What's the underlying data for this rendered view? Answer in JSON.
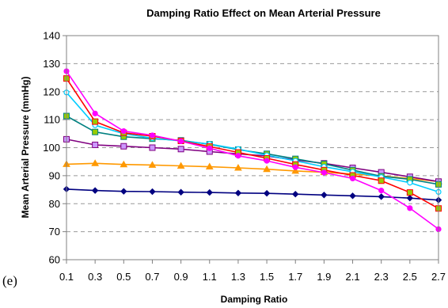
{
  "chart_data": {
    "type": "line",
    "title": "Damping Ratio Effect on Mean Arterial Pressure",
    "xlabel": "Damping Ratio",
    "ylabel": "Mean Arterial Pressure (mmHg)",
    "panel_label": "(e)",
    "ylim": [
      60,
      140
    ],
    "yticks": [
      "60",
      "70",
      "80",
      "90",
      "100",
      "110",
      "120",
      "130",
      "140"
    ],
    "categories": [
      "0.1",
      "0.3",
      "0.5",
      "0.7",
      "0.9",
      "1.1",
      "1.3",
      "1.5",
      "1.7",
      "1.9",
      "2.1",
      "2.3",
      "2.5",
      "2.7"
    ],
    "grid": true,
    "legend": "none",
    "series": [
      {
        "color": "#000080",
        "marker": "diamond",
        "values": [
          85.2,
          84.7,
          84.4,
          84.3,
          84.1,
          84.0,
          83.8,
          83.7,
          83.4,
          83.1,
          82.8,
          82.5,
          82.0,
          81.3
        ]
      },
      {
        "color": "#FF9900",
        "marker": "triangle",
        "values": [
          94.1,
          94.4,
          94.0,
          93.8,
          93.5,
          93.2,
          92.8,
          92.3,
          91.7,
          91.2,
          90.6,
          89.9,
          89.0,
          87.9
        ]
      },
      {
        "color": "#800080",
        "marker": "square",
        "fill": "#CC99FF",
        "values": [
          103.0,
          101.0,
          100.5,
          100.0,
          99.5,
          98.6,
          97.8,
          97.0,
          95.6,
          94.4,
          92.8,
          91.2,
          89.6,
          87.9
        ]
      },
      {
        "color": "#008080",
        "marker": "square",
        "fill": "#99CC00",
        "values": [
          111.3,
          105.6,
          103.9,
          103.2,
          102.6,
          101.2,
          99.3,
          97.8,
          96.0,
          94.2,
          92.0,
          89.8,
          88.7,
          86.9
        ]
      },
      {
        "color": "#00CCFF",
        "marker": "circle",
        "fill": "#FFFFFF",
        "values": [
          119.7,
          108.0,
          105.0,
          103.4,
          102.4,
          101.3,
          99.5,
          97.3,
          95.3,
          93.2,
          91.4,
          89.5,
          87.5,
          84.2
        ]
      },
      {
        "color": "#FF0000",
        "marker": "square",
        "fill": "#99CC00",
        "values": [
          124.7,
          109.3,
          105.3,
          104.1,
          102.4,
          100.4,
          98.3,
          96.2,
          94.0,
          92.0,
          90.1,
          88.2,
          84.0,
          78.3
        ]
      },
      {
        "color": "#FF00FF",
        "marker": "circle",
        "values": [
          127.3,
          112.2,
          105.9,
          104.4,
          102.3,
          99.8,
          97.1,
          95.3,
          93.0,
          91.1,
          89.0,
          84.7,
          78.4,
          70.9
        ]
      }
    ]
  }
}
